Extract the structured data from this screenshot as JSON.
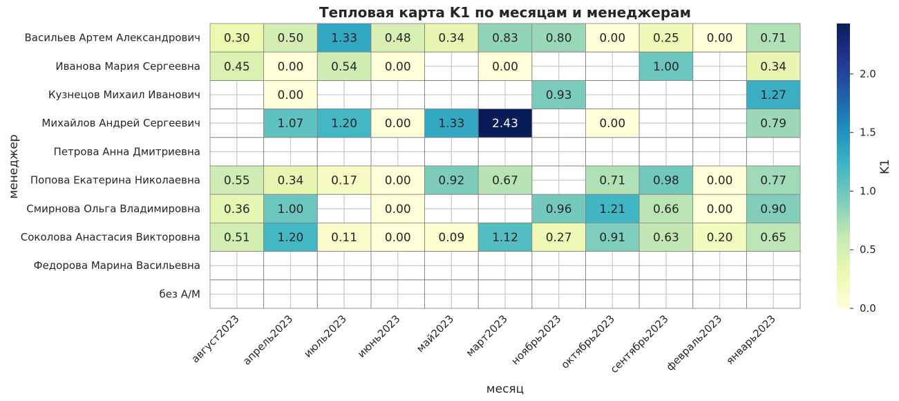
{
  "chart_data": {
    "type": "heatmap",
    "title": "Тепловая карта K1 по месяцам и менеджерам",
    "xlabel": "месяц",
    "ylabel": "менеджер",
    "colorbar_label": "K1",
    "colormap": "YlGnBu",
    "vmin": 0.0,
    "vmax": 2.43,
    "colorbar_ticks": [
      "0.0",
      "0.5",
      "1.0",
      "1.5",
      "2.0"
    ],
    "grid": true,
    "x": [
      "август2023",
      "апрель2023",
      "июль2023",
      "июнь2023",
      "май2023",
      "март2023",
      "ноябрь2023",
      "октябрь2023",
      "сентябрь2023",
      "февраль2023",
      "январь2023"
    ],
    "y": [
      "Васильев Артем Александрович",
      "Иванова Мария Сергеевна",
      "Кузнецов Михаил Иванович",
      "Михайлов Андрей Сергеевич",
      "Петрова Анна Дмитриевна",
      "Попова Екатерина Николаевна",
      "Смирнова Ольга Владимировна",
      "Соколова Анастасия Викторовна",
      "Федорова Марина Васильевна",
      "без А/М"
    ],
    "values": [
      [
        0.3,
        0.5,
        1.33,
        0.48,
        0.34,
        0.83,
        0.8,
        0.0,
        0.25,
        0.0,
        0.71
      ],
      [
        0.45,
        0.0,
        0.54,
        0.0,
        null,
        0.0,
        null,
        null,
        1.0,
        null,
        0.34
      ],
      [
        null,
        0.0,
        null,
        null,
        null,
        null,
        0.93,
        null,
        null,
        null,
        1.27
      ],
      [
        null,
        1.07,
        1.2,
        0.0,
        1.33,
        2.43,
        null,
        0.0,
        null,
        null,
        0.79
      ],
      [
        null,
        null,
        null,
        null,
        null,
        null,
        null,
        null,
        null,
        null,
        null
      ],
      [
        0.55,
        0.34,
        0.17,
        0.0,
        0.92,
        0.67,
        null,
        0.71,
        0.98,
        0.0,
        0.77
      ],
      [
        0.36,
        1.0,
        null,
        0.0,
        null,
        null,
        0.96,
        1.21,
        0.66,
        0.0,
        0.9
      ],
      [
        0.51,
        1.2,
        0.11,
        0.0,
        0.09,
        1.12,
        0.27,
        0.91,
        0.63,
        0.2,
        0.65
      ],
      [
        null,
        null,
        null,
        null,
        null,
        null,
        null,
        null,
        null,
        null,
        null
      ],
      [
        null,
        null,
        null,
        null,
        null,
        null,
        null,
        null,
        null,
        null,
        null
      ]
    ]
  }
}
